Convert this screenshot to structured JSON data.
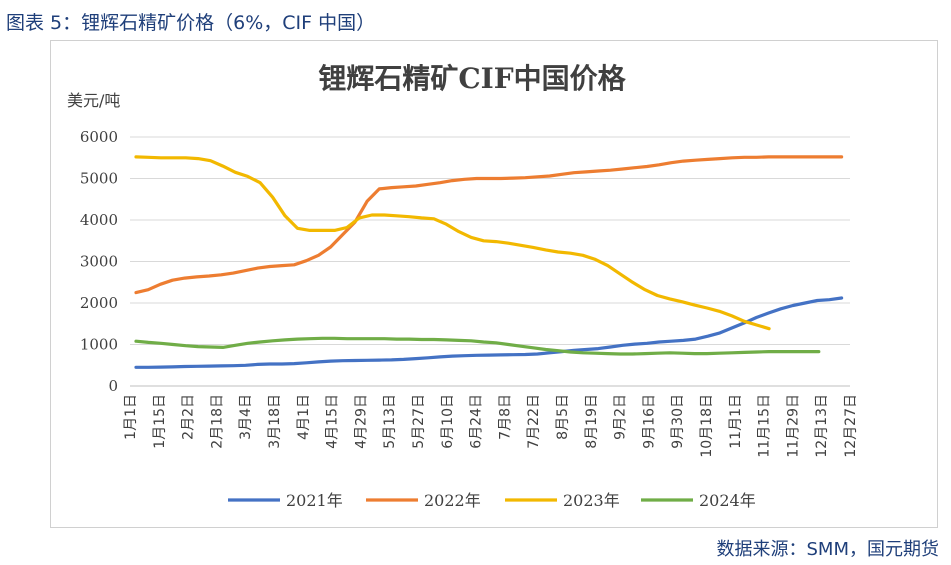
{
  "figure_caption": "图表 5：锂辉石精矿价格（6%，CIF 中国）",
  "source_note": "数据来源：SMM，国元期货",
  "chart_data": {
    "type": "line",
    "title": "锂辉石精矿CIF中国价格",
    "ylabel": "美元/吨",
    "ylim": [
      0,
      6000
    ],
    "yticks": [
      0,
      1000,
      2000,
      3000,
      4000,
      5000,
      6000
    ],
    "grid": true,
    "legend_position": "bottom",
    "x_ticks": [
      "1月1日",
      "1月15日",
      "2月2日",
      "2月18日",
      "3月4日",
      "3月18日",
      "4月1日",
      "4月15日",
      "4月29日",
      "5月13日",
      "5月27日",
      "6月10日",
      "6月24日",
      "7月8日",
      "7月22日",
      "8月5日",
      "8月19日",
      "9月2日",
      "9月16日",
      "9月30日",
      "10月18日",
      "11月1日",
      "11月15日",
      "11月29日",
      "12月13日",
      "12月27日"
    ],
    "series": [
      {
        "name": "2021年",
        "color": "#4472C4",
        "values": [
          450,
          450,
          455,
          460,
          470,
          475,
          480,
          485,
          490,
          500,
          520,
          530,
          530,
          540,
          560,
          580,
          600,
          610,
          615,
          620,
          625,
          630,
          640,
          660,
          680,
          700,
          720,
          730,
          740,
          745,
          750,
          755,
          760,
          770,
          800,
          830,
          860,
          880,
          900,
          940,
          980,
          1010,
          1030,
          1060,
          1080,
          1100,
          1130,
          1200,
          1280,
          1400,
          1520,
          1650,
          1760,
          1860,
          1940,
          2000,
          2060,
          2080,
          2120
        ]
      },
      {
        "name": "2022年",
        "color": "#ED7D31",
        "values": [
          2250,
          2320,
          2450,
          2550,
          2600,
          2630,
          2650,
          2680,
          2720,
          2780,
          2840,
          2880,
          2900,
          2920,
          3020,
          3150,
          3350,
          3650,
          3950,
          4450,
          4750,
          4780,
          4800,
          4820,
          4860,
          4900,
          4950,
          4980,
          5000,
          5000,
          5000,
          5010,
          5020,
          5040,
          5060,
          5100,
          5140,
          5160,
          5180,
          5200,
          5230,
          5260,
          5290,
          5330,
          5380,
          5420,
          5440,
          5460,
          5480,
          5500,
          5510,
          5510,
          5520,
          5520,
          5520,
          5520,
          5520,
          5520,
          5520
        ]
      },
      {
        "name": "2023年",
        "color": "#F2B800",
        "values": [
          5520,
          5510,
          5500,
          5500,
          5500,
          5480,
          5430,
          5300,
          5150,
          5050,
          4900,
          4550,
          4100,
          3800,
          3750,
          3750,
          3750,
          3820,
          4050,
          4120,
          4120,
          4100,
          4080,
          4050,
          4030,
          3900,
          3720,
          3580,
          3500,
          3480,
          3440,
          3390,
          3340,
          3280,
          3230,
          3200,
          3150,
          3050,
          2900,
          2700,
          2500,
          2320,
          2180,
          2100,
          2030,
          1950,
          1880,
          1800,
          1690,
          1560,
          1470,
          1380
        ]
      },
      {
        "name": "2024年",
        "color": "#70AD47",
        "values": [
          1080,
          1050,
          1030,
          1000,
          970,
          950,
          940,
          930,
          980,
          1030,
          1060,
          1090,
          1110,
          1130,
          1140,
          1150,
          1150,
          1140,
          1140,
          1140,
          1140,
          1130,
          1130,
          1120,
          1120,
          1110,
          1100,
          1090,
          1060,
          1040,
          1000,
          960,
          920,
          880,
          850,
          820,
          800,
          790,
          780,
          770,
          770,
          780,
          790,
          800,
          790,
          780,
          780,
          790,
          800,
          810,
          820,
          830,
          830,
          830,
          830,
          830
        ]
      }
    ]
  }
}
